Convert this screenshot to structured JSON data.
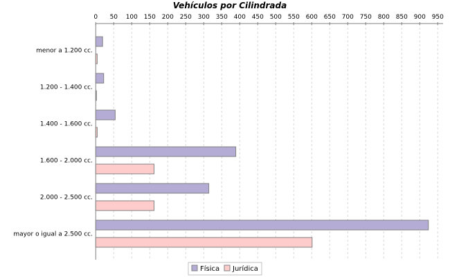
{
  "chart_data": {
    "type": "bar",
    "orientation": "horizontal",
    "title": "Vehículos por Cilindrada",
    "xlabel": "",
    "ylabel": "",
    "categories": [
      "menor a 1.200 cc.",
      "1.200 - 1.400 cc.",
      "1.400 - 1.600 cc.",
      "1.600 - 2.000 cc.",
      "2.000 - 2.500 cc.",
      "mayor o igual a 2.500 cc."
    ],
    "series": [
      {
        "name": "Física",
        "color": "#b5acd6",
        "values": [
          19,
          22,
          54,
          389,
          314,
          924
        ]
      },
      {
        "name": "Jurídica",
        "color": "#ffcccc",
        "values": [
          4,
          1,
          4,
          162,
          162,
          601
        ]
      }
    ],
    "value_axis": {
      "position": "top",
      "range": [
        0,
        965
      ],
      "ticks": [
        0,
        50,
        100,
        150,
        200,
        250,
        300,
        350,
        400,
        450,
        500,
        550,
        600,
        650,
        700,
        750,
        800,
        850,
        900,
        950
      ]
    },
    "grid": true,
    "legend": "bottom"
  }
}
